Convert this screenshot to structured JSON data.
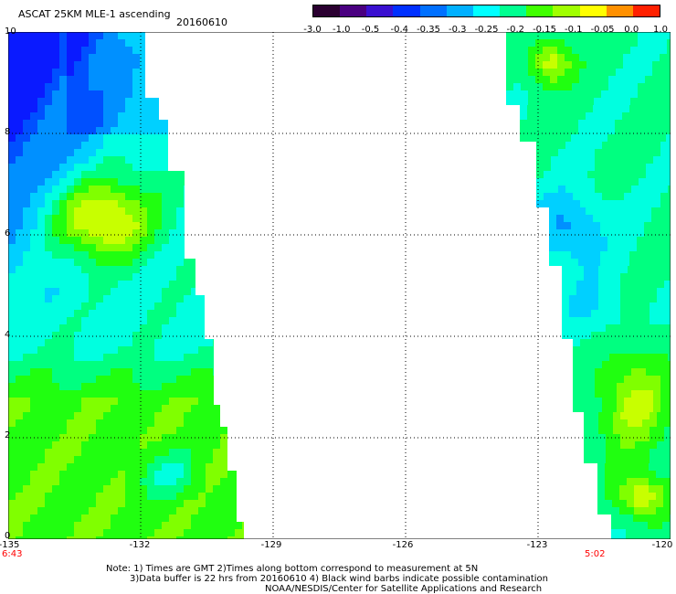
{
  "header": {
    "title": "ASCAT 25KM MLE-1 ascending",
    "date": "20160610"
  },
  "colorbar": {
    "labels": [
      "-3.0",
      "-1.0",
      "-0.5",
      "-0.4",
      "-0.35",
      "-0.3",
      "-0.25",
      "-0.2",
      "-0.15",
      "-0.1",
      "-0.05",
      "0.0",
      "1.0"
    ],
    "colors": [
      "#2a0030",
      "#4a0080",
      "#3a10d0",
      "#0030ff",
      "#0070ff",
      "#00b0ff",
      "#00ffff",
      "#00ff90",
      "#40ff00",
      "#a0ff00",
      "#ffff00",
      "#ff9000",
      "#ff2000"
    ]
  },
  "axes": {
    "y_ticks": [
      "10",
      "8",
      "6",
      "4",
      "2",
      "0"
    ],
    "x_ticks": [
      "-135",
      "-132",
      "-129",
      "-126",
      "-123",
      "-120"
    ],
    "x_range": [
      -135,
      -120
    ],
    "y_range": [
      0,
      10
    ]
  },
  "times": {
    "left": "6:43",
    "right": "5:02"
  },
  "notes": {
    "line1": "Note: 1) Times are GMT 2)Times along bottom correspond to measurement at 5N",
    "line2": "3)Data buffer is 22 hrs from 20160610 4) Black wind barbs indicate possible contamination",
    "line3": "NOAA/NESDIS/Center for Satellite Applications and Research"
  }
}
